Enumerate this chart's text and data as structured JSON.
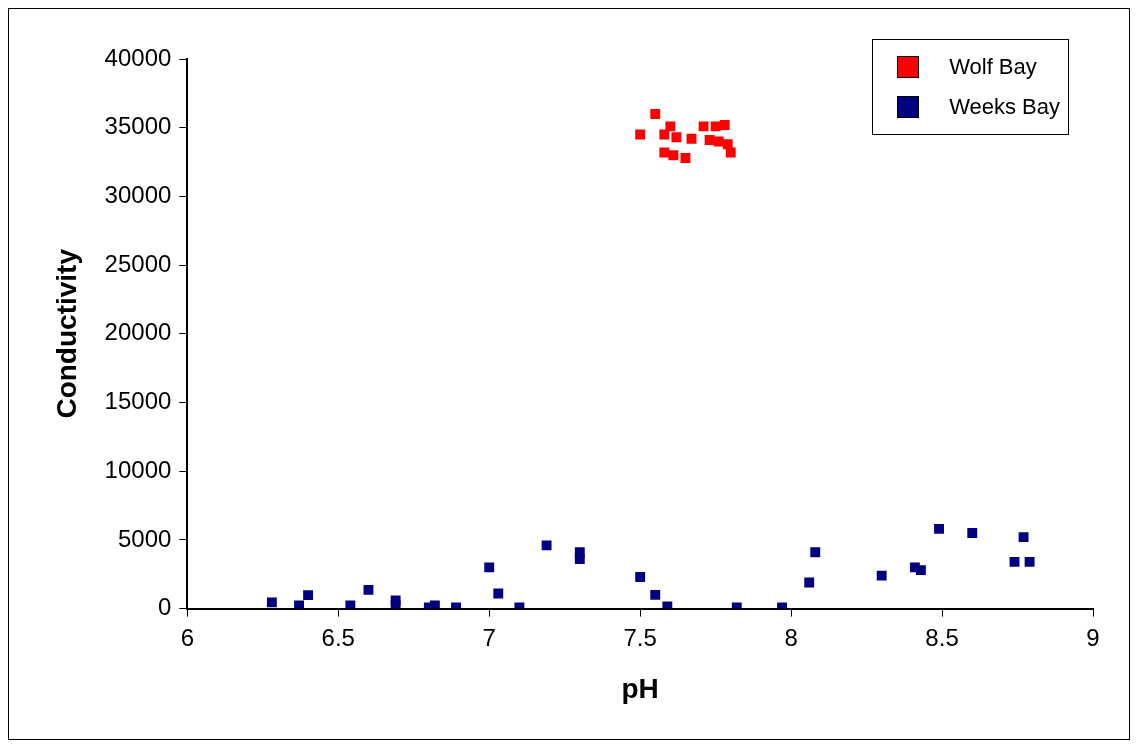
{
  "chart_data": {
    "type": "scatter",
    "xlabel": "pH",
    "ylabel": "Conductivity",
    "xlim": [
      6,
      9
    ],
    "ylim": [
      0,
      40000
    ],
    "xticks": [
      6,
      6.5,
      7,
      7.5,
      8,
      8.5,
      9
    ],
    "yticks": [
      0,
      5000,
      10000,
      15000,
      20000,
      25000,
      30000,
      35000,
      40000
    ],
    "grid": false,
    "legend": "top right",
    "marker": "square",
    "series": [
      {
        "name": "Wolf Bay",
        "color": "#ff0000",
        "x": [
          7.5,
          7.55,
          7.58,
          7.6,
          7.58,
          7.61,
          7.62,
          7.65,
          7.67,
          7.71,
          7.75,
          7.73,
          7.78,
          7.76,
          7.79,
          7.8
        ],
        "values": [
          34500,
          36000,
          34500,
          35100,
          33200,
          33000,
          34300,
          32800,
          34200,
          35100,
          35100,
          34100,
          35200,
          34000,
          33800,
          33200
        ]
      },
      {
        "name": "Weeks Bay",
        "color": "#000080",
        "x": [
          6.28,
          6.37,
          6.4,
          6.54,
          6.6,
          6.69,
          6.69,
          6.8,
          6.82,
          6.89,
          7,
          7.03,
          7.1,
          7.19,
          7.3,
          7.3,
          7.5,
          7.55,
          7.59,
          7.82,
          7.97,
          8.06,
          8.08,
          8.3,
          8.41,
          8.43,
          8.49,
          8.6,
          8.77,
          8.74,
          8.79
        ],
        "values": [
          450,
          230,
          980,
          230,
          1360,
          600,
          230,
          80,
          230,
          80,
          3000,
          1100,
          80,
          4600,
          4100,
          3600,
          2300,
          1000,
          150,
          80,
          80,
          1900,
          4100,
          2400,
          3000,
          2800,
          5800,
          5500,
          5200,
          3400,
          3400
        ]
      }
    ]
  }
}
